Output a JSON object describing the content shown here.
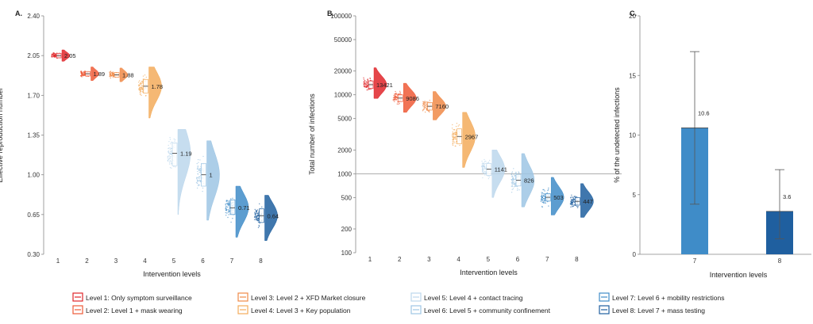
{
  "colors": {
    "1": "#e0262a",
    "2": "#ee5a37",
    "3": "#f08a48",
    "4": "#f3ac5c",
    "5": "#bcd7ec",
    "6": "#9ec6e4",
    "7": "#3f8cc8",
    "8": "#1f5f9f"
  },
  "legend": [
    {
      "level": 1,
      "label": "Level 1:  Only symptom surveillance"
    },
    {
      "level": 2,
      "label": "Level 2:  Level 1 + mask wearing"
    },
    {
      "level": 3,
      "label": "Level 3:  Level 2 + XFD Market closure"
    },
    {
      "level": 4,
      "label": "Level 4:  Level 3 + Key population"
    },
    {
      "level": 5,
      "label": "Level 5:  Level 4 + contact tracing"
    },
    {
      "level": 6,
      "label": "Level 6:  Level 5 + community confinement"
    },
    {
      "level": 7,
      "label": "Level 7:  Level 6 + mobility restrictions"
    },
    {
      "level": 8,
      "label": "Level 8:  Level 7 + mass testing"
    }
  ],
  "chart_data": [
    {
      "type": "violin",
      "panel_label": "A.",
      "xlabel": "Intervention levels",
      "ylabel": "Effective reproduction number",
      "x_ticks": [
        "1",
        "2",
        "3",
        "4",
        "5",
        "6",
        "7",
        "8"
      ],
      "y_ticks": [
        "0.30",
        "0.65",
        "1.00",
        "1.35",
        "1.70",
        "2.05",
        "2.40"
      ],
      "ylim": [
        0.3,
        2.4
      ],
      "scale": "linear",
      "series": [
        {
          "level": 1,
          "median": 2.05,
          "label": "2.05",
          "min": 2.0,
          "max": 2.1,
          "q1": 2.03,
          "q3": 2.07
        },
        {
          "level": 2,
          "median": 1.89,
          "label": "1.89",
          "min": 1.83,
          "max": 1.95,
          "q1": 1.87,
          "q3": 1.91
        },
        {
          "level": 3,
          "median": 1.88,
          "label": "1.88",
          "min": 1.82,
          "max": 1.94,
          "q1": 1.86,
          "q3": 1.9
        },
        {
          "level": 4,
          "median": 1.78,
          "label": "1.78",
          "min": 1.5,
          "max": 1.95,
          "q1": 1.72,
          "q3": 1.84
        },
        {
          "level": 5,
          "median": 1.19,
          "label": "1.19",
          "min": 0.65,
          "max": 1.4,
          "q1": 1.08,
          "q3": 1.28
        },
        {
          "level": 6,
          "median": 1.0,
          "label": "1",
          "min": 0.6,
          "max": 1.3,
          "q1": 0.9,
          "q3": 1.1
        },
        {
          "level": 7,
          "median": 0.71,
          "label": "0.71",
          "min": 0.45,
          "max": 0.9,
          "q1": 0.65,
          "q3": 0.78
        },
        {
          "level": 8,
          "median": 0.64,
          "label": "0.64",
          "min": 0.42,
          "max": 0.82,
          "q1": 0.58,
          "q3": 0.7
        }
      ]
    },
    {
      "type": "violin",
      "panel_label": "B.",
      "xlabel": "Intervention levels",
      "ylabel": "Total number of infections",
      "x_ticks": [
        "1",
        "2",
        "3",
        "4",
        "5",
        "6",
        "7",
        "8"
      ],
      "y_ticks": [
        "100",
        "200",
        "500",
        "1000",
        "2000",
        "5000",
        "10000",
        "20000",
        "50000",
        "100000"
      ],
      "ylim": [
        100,
        100000
      ],
      "scale": "log",
      "reference_line": 1000,
      "series": [
        {
          "level": 1,
          "median": 13421,
          "label": "13421",
          "min": 9000,
          "max": 22000,
          "q1": 12000,
          "q3": 15000
        },
        {
          "level": 2,
          "median": 9086,
          "label": "9086",
          "min": 6000,
          "max": 14000,
          "q1": 8200,
          "q3": 10000
        },
        {
          "level": 3,
          "median": 7160,
          "label": "7160",
          "min": 4800,
          "max": 11000,
          "q1": 6400,
          "q3": 8000
        },
        {
          "level": 4,
          "median": 2967,
          "label": "2967",
          "min": 1200,
          "max": 6000,
          "q1": 2400,
          "q3": 3700
        },
        {
          "level": 5,
          "median": 1141,
          "label": "1141",
          "min": 500,
          "max": 2000,
          "q1": 950,
          "q3": 1350
        },
        {
          "level": 6,
          "median": 826,
          "label": "826",
          "min": 380,
          "max": 1800,
          "q1": 700,
          "q3": 980
        },
        {
          "level": 7,
          "median": 503,
          "label": "503",
          "min": 300,
          "max": 900,
          "q1": 450,
          "q3": 560
        },
        {
          "level": 8,
          "median": 447,
          "label": "447",
          "min": 280,
          "max": 750,
          "q1": 400,
          "q3": 500
        }
      ]
    },
    {
      "type": "bar",
      "panel_label": "C.",
      "xlabel": "Intervention levels",
      "ylabel": "% of the undetected infections",
      "categories": [
        "7",
        "8"
      ],
      "y_ticks": [
        "0",
        "5",
        "10",
        "15",
        "20"
      ],
      "ylim": [
        0,
        20
      ],
      "values": [
        10.6,
        3.6
      ],
      "value_labels": [
        "10.6",
        "3.6"
      ],
      "error_low": [
        4.2,
        1.3
      ],
      "error_high": [
        17.0,
        7.1
      ]
    }
  ]
}
